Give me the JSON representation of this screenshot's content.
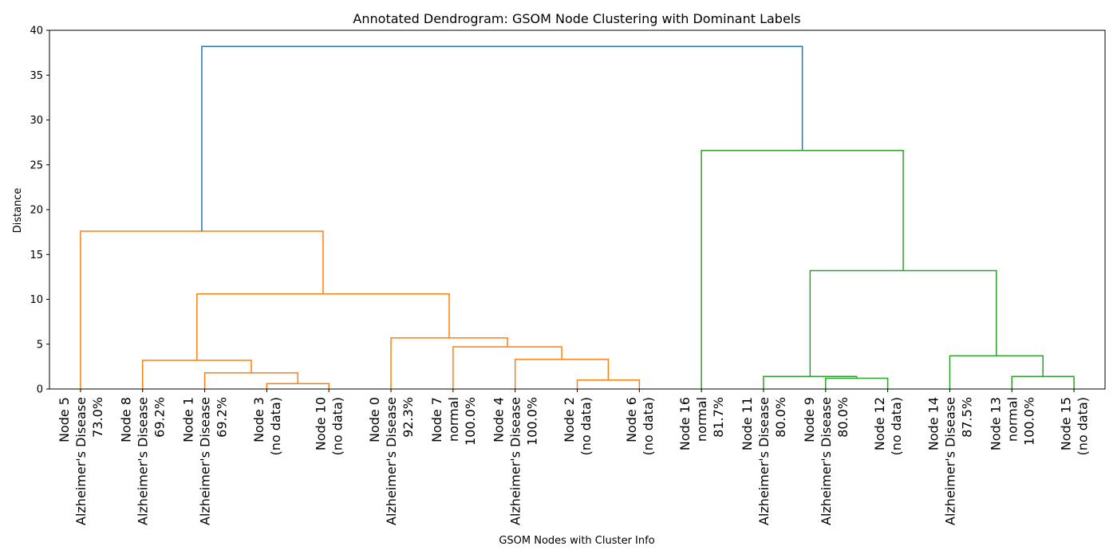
{
  "chart_data": {
    "type": "dendrogram",
    "title": "Annotated Dendrogram: GSOM Node Clustering with Dominant Labels",
    "xlabel": "GSOM Nodes with Cluster Info",
    "ylabel": "Distance",
    "leaves": [
      [
        "Node 5",
        "Alzheimer's Disease",
        "73.0%"
      ],
      [
        "Node 8",
        "Alzheimer's Disease",
        "69.2%"
      ],
      [
        "Node 1",
        "Alzheimer's Disease",
        "69.2%"
      ],
      [
        "Node 3",
        "(no data)"
      ],
      [
        "Node 10",
        "(no data)"
      ],
      [
        "Node 0",
        "Alzheimer's Disease",
        "92.3%"
      ],
      [
        "Node 7",
        "normal",
        "100.0%"
      ],
      [
        "Node 4",
        "Alzheimer's Disease",
        "100.0%"
      ],
      [
        "Node 2",
        "(no data)"
      ],
      [
        "Node 6",
        "(no data)"
      ],
      [
        "Node 16",
        "normal",
        "81.7%"
      ],
      [
        "Node 11",
        "Alzheimer's Disease",
        "80.0%"
      ],
      [
        "Node 9",
        "Alzheimer's Disease",
        "80.0%"
      ],
      [
        "Node 12",
        "(no data)"
      ],
      [
        "Node 14",
        "Alzheimer's Disease",
        "87.5%"
      ],
      [
        "Node 13",
        "normal",
        "100.0%"
      ],
      [
        "Node 15",
        "(no data)"
      ]
    ],
    "merges": [
      {
        "children": [
          3,
          4
        ],
        "height": 0.6,
        "color": "#ff7f0e"
      },
      {
        "children": [
          2,
          17
        ],
        "height": 1.8,
        "color": "#ff7f0e"
      },
      {
        "children": [
          1,
          18
        ],
        "height": 3.2,
        "color": "#ff7f0e"
      },
      {
        "children": [
          8,
          9
        ],
        "height": 1.0,
        "color": "#ff7f0e"
      },
      {
        "children": [
          7,
          20
        ],
        "height": 3.3,
        "color": "#ff7f0e"
      },
      {
        "children": [
          6,
          21
        ],
        "height": 4.7,
        "color": "#ff7f0e"
      },
      {
        "children": [
          5,
          22
        ],
        "height": 5.7,
        "color": "#ff7f0e"
      },
      {
        "children": [
          19,
          23
        ],
        "height": 10.6,
        "color": "#ff7f0e"
      },
      {
        "children": [
          0,
          24
        ],
        "height": 17.6,
        "color": "#ff7f0e"
      },
      {
        "children": [
          12,
          13
        ],
        "height": 1.2,
        "color": "#2ca02c"
      },
      {
        "children": [
          11,
          26
        ],
        "height": 1.4,
        "color": "#2ca02c"
      },
      {
        "children": [
          15,
          16
        ],
        "height": 1.4,
        "color": "#2ca02c"
      },
      {
        "children": [
          14,
          28
        ],
        "height": 3.7,
        "color": "#2ca02c"
      },
      {
        "children": [
          27,
          29
        ],
        "height": 13.2,
        "color": "#2ca02c"
      },
      {
        "children": [
          10,
          30
        ],
        "height": 26.6,
        "color": "#2ca02c"
      },
      {
        "children": [
          25,
          31
        ],
        "height": 38.2,
        "color": "#1f77b4"
      }
    ],
    "ylim": [
      0,
      40
    ],
    "yticks": [
      0,
      5,
      10,
      15,
      20,
      25,
      30,
      35,
      40
    ]
  }
}
